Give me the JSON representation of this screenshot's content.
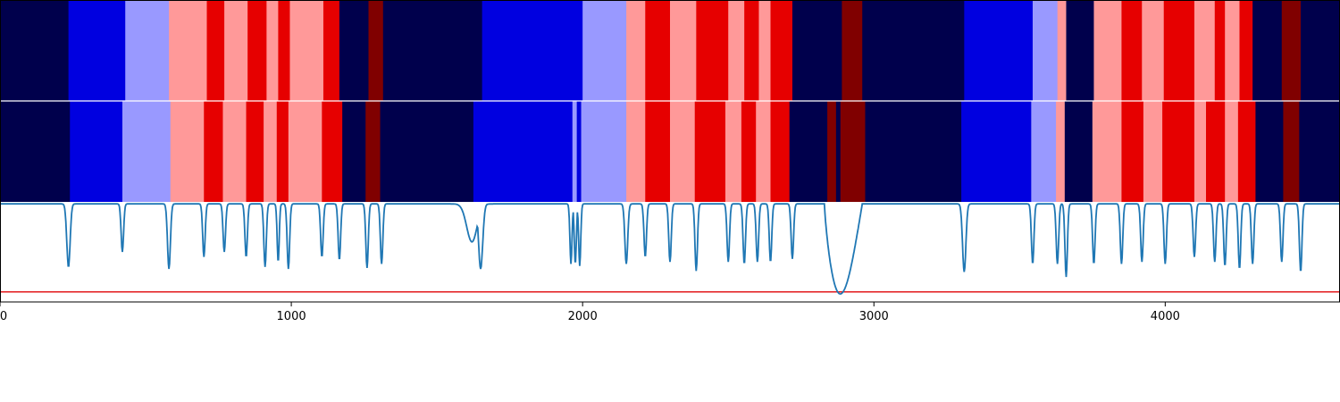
{
  "chart_data": {
    "type": "heatmap",
    "title": "",
    "xlabel": "",
    "ylabel": "",
    "xlim": [
      0,
      4600
    ],
    "x_ticks": [
      "0",
      "1000",
      "2000",
      "3000",
      "4000"
    ],
    "x_tick_values": [
      0,
      1000,
      2000,
      3000,
      4000
    ],
    "legend": "none",
    "grid": false,
    "colors": {
      "0": "#00004c",
      "1": "#0000e0",
      "2": "#9999ff",
      "3": "#ff9999",
      "4": "#e60000",
      "5": "#800000"
    },
    "segmentation_tracks": [
      {
        "segments": [
          [
            0,
            235,
            0
          ],
          [
            235,
            430,
            1
          ],
          [
            430,
            580,
            2
          ],
          [
            580,
            710,
            3
          ],
          [
            710,
            770,
            4
          ],
          [
            770,
            850,
            3
          ],
          [
            850,
            915,
            4
          ],
          [
            915,
            955,
            3
          ],
          [
            955,
            995,
            4
          ],
          [
            995,
            1110,
            3
          ],
          [
            1110,
            1165,
            4
          ],
          [
            1165,
            1265,
            0
          ],
          [
            1265,
            1315,
            5
          ],
          [
            1315,
            1655,
            0
          ],
          [
            1655,
            2000,
            1
          ],
          [
            2000,
            2150,
            2
          ],
          [
            2150,
            2215,
            3
          ],
          [
            2215,
            2300,
            4
          ],
          [
            2300,
            2390,
            3
          ],
          [
            2390,
            2500,
            4
          ],
          [
            2500,
            2555,
            3
          ],
          [
            2555,
            2605,
            4
          ],
          [
            2605,
            2645,
            3
          ],
          [
            2645,
            2720,
            4
          ],
          [
            2720,
            2890,
            0
          ],
          [
            2890,
            2960,
            5
          ],
          [
            2960,
            3310,
            0
          ],
          [
            3310,
            3545,
            1
          ],
          [
            3545,
            3630,
            2
          ],
          [
            3630,
            3660,
            3
          ],
          [
            3660,
            3755,
            0
          ],
          [
            3755,
            3850,
            3
          ],
          [
            3850,
            3920,
            4
          ],
          [
            3920,
            3995,
            3
          ],
          [
            3995,
            4100,
            4
          ],
          [
            4100,
            4170,
            3
          ],
          [
            4170,
            4205,
            4
          ],
          [
            4205,
            4255,
            3
          ],
          [
            4255,
            4300,
            4
          ],
          [
            4300,
            4400,
            0
          ],
          [
            4400,
            4465,
            5
          ],
          [
            4465,
            4600,
            0
          ]
        ]
      },
      {
        "segments": [
          [
            0,
            240,
            0
          ],
          [
            240,
            420,
            1
          ],
          [
            420,
            585,
            2
          ],
          [
            585,
            700,
            3
          ],
          [
            700,
            765,
            4
          ],
          [
            765,
            845,
            3
          ],
          [
            845,
            905,
            4
          ],
          [
            905,
            950,
            3
          ],
          [
            950,
            990,
            4
          ],
          [
            990,
            1105,
            3
          ],
          [
            1105,
            1175,
            4
          ],
          [
            1175,
            1255,
            0
          ],
          [
            1255,
            1305,
            5
          ],
          [
            1305,
            1625,
            0
          ],
          [
            1625,
            1965,
            1
          ],
          [
            1965,
            1980,
            2
          ],
          [
            1980,
            1995,
            1
          ],
          [
            1995,
            2150,
            2
          ],
          [
            2150,
            2215,
            3
          ],
          [
            2215,
            2300,
            4
          ],
          [
            2300,
            2385,
            3
          ],
          [
            2385,
            2490,
            4
          ],
          [
            2490,
            2545,
            3
          ],
          [
            2545,
            2595,
            4
          ],
          [
            2595,
            2645,
            3
          ],
          [
            2645,
            2710,
            4
          ],
          [
            2710,
            2840,
            0
          ],
          [
            2840,
            2870,
            5
          ],
          [
            2870,
            2885,
            0
          ],
          [
            2885,
            2970,
            5
          ],
          [
            2970,
            3300,
            0
          ],
          [
            3300,
            3540,
            1
          ],
          [
            3540,
            3625,
            2
          ],
          [
            3625,
            3655,
            3
          ],
          [
            3655,
            3750,
            0
          ],
          [
            3750,
            3850,
            3
          ],
          [
            3850,
            3925,
            4
          ],
          [
            3925,
            3990,
            3
          ],
          [
            3990,
            4100,
            4
          ],
          [
            4100,
            4140,
            3
          ],
          [
            4140,
            4205,
            4
          ],
          [
            4205,
            4250,
            3
          ],
          [
            4250,
            4310,
            4
          ],
          [
            4310,
            4405,
            0
          ],
          [
            4405,
            4460,
            5
          ],
          [
            4460,
            4600,
            0
          ]
        ]
      }
    ],
    "signal_track": {
      "line_color": "#1f77b4",
      "threshold_color": "#e31a1c",
      "ylim": [
        0,
        1
      ],
      "threshold": 0.1,
      "baseline": 0.98,
      "dips": [
        [
          235,
          0.35,
          8
        ],
        [
          420,
          0.5,
          6
        ],
        [
          580,
          0.33,
          7
        ],
        [
          700,
          0.45,
          6
        ],
        [
          770,
          0.5,
          6
        ],
        [
          845,
          0.45,
          6
        ],
        [
          910,
          0.35,
          6
        ],
        [
          955,
          0.4,
          5
        ],
        [
          990,
          0.33,
          6
        ],
        [
          1105,
          0.45,
          6
        ],
        [
          1165,
          0.42,
          6
        ],
        [
          1260,
          0.34,
          6
        ],
        [
          1310,
          0.38,
          6
        ],
        [
          1620,
          0.6,
          25
        ],
        [
          1650,
          0.33,
          10
        ],
        [
          1960,
          0.38,
          5
        ],
        [
          1975,
          0.38,
          5
        ],
        [
          1990,
          0.36,
          5
        ],
        [
          2150,
          0.38,
          7
        ],
        [
          2215,
          0.45,
          6
        ],
        [
          2300,
          0.4,
          6
        ],
        [
          2390,
          0.31,
          6
        ],
        [
          2500,
          0.4,
          6
        ],
        [
          2555,
          0.38,
          6
        ],
        [
          2600,
          0.4,
          6
        ],
        [
          2645,
          0.4,
          6
        ],
        [
          2720,
          0.43,
          6
        ],
        [
          3310,
          0.3,
          8
        ],
        [
          3545,
          0.38,
          6
        ],
        [
          3630,
          0.38,
          6
        ],
        [
          3660,
          0.25,
          6
        ],
        [
          3755,
          0.38,
          6
        ],
        [
          3850,
          0.38,
          6
        ],
        [
          3920,
          0.4,
          6
        ],
        [
          4000,
          0.38,
          6
        ],
        [
          4100,
          0.45,
          6
        ],
        [
          4170,
          0.4,
          6
        ],
        [
          4205,
          0.36,
          6
        ],
        [
          4255,
          0.33,
          6
        ],
        [
          4300,
          0.38,
          6
        ],
        [
          4400,
          0.4,
          6
        ],
        [
          4465,
          0.3,
          6
        ]
      ],
      "wide_dip": {
        "start": 2830,
        "end": 2960,
        "min_x": 2880,
        "min_y": 0.08
      }
    }
  }
}
